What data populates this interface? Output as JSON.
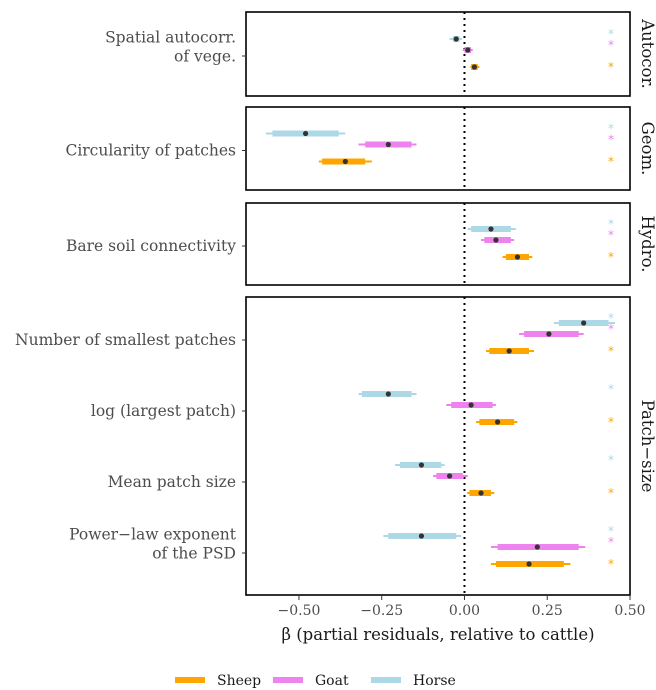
{
  "chart_data": {
    "type": "forest",
    "xlabel": "β (partial residuals, relative to cattle)",
    "xlim": [
      -0.66,
      0.5
    ],
    "xticks": [
      -0.5,
      -0.25,
      0.0,
      0.25,
      0.5
    ],
    "xtick_labels": [
      "−0.50",
      "−0.25",
      "0.00",
      "0.25",
      "0.50"
    ],
    "reference_line": 0,
    "legend_position": "bottom",
    "series": [
      {
        "name": "Sheep",
        "color": "#FFA500"
      },
      {
        "name": "Goat",
        "color": "#EE82EE"
      },
      {
        "name": "Horse",
        "color": "#ADD8E6"
      }
    ],
    "panels": [
      {
        "strip": "Autocor.",
        "variables": [
          {
            "label": [
              "Spatial autocorr.",
              "of vege."
            ],
            "estimates": [
              {
                "series": "Sheep",
                "value": 0.03,
                "ci_inner": [
                  0.02,
                  0.04
                ],
                "ci_outer": [
                  0.018,
                  0.045
                ],
                "significant": true
              },
              {
                "series": "Goat",
                "value": 0.01,
                "ci_inner": [
                  0.0,
                  0.02
                ],
                "ci_outer": [
                  -0.005,
                  0.025
                ],
                "significant": true
              },
              {
                "series": "Horse",
                "value": -0.025,
                "ci_inner": [
                  -0.035,
                  -0.015
                ],
                "ci_outer": [
                  -0.045,
                  -0.008
                ],
                "significant": true
              }
            ]
          }
        ]
      },
      {
        "strip": "Geom.",
        "variables": [
          {
            "label": [
              "Circularity of patches"
            ],
            "estimates": [
              {
                "series": "Sheep",
                "value": -0.36,
                "ci_inner": [
                  -0.43,
                  -0.3
                ],
                "ci_outer": [
                  -0.44,
                  -0.28
                ],
                "significant": true
              },
              {
                "series": "Goat",
                "value": -0.23,
                "ci_inner": [
                  -0.3,
                  -0.16
                ],
                "ci_outer": [
                  -0.32,
                  -0.145
                ],
                "significant": true
              },
              {
                "series": "Horse",
                "value": -0.48,
                "ci_inner": [
                  -0.58,
                  -0.38
                ],
                "ci_outer": [
                  -0.6,
                  -0.36
                ],
                "significant": true
              }
            ]
          }
        ]
      },
      {
        "strip": "Hydro.",
        "variables": [
          {
            "label": [
              "Bare soil connectivity"
            ],
            "estimates": [
              {
                "series": "Sheep",
                "value": 0.16,
                "ci_inner": [
                  0.125,
                  0.195
                ],
                "ci_outer": [
                  0.115,
                  0.205
                ],
                "significant": true
              },
              {
                "series": "Goat",
                "value": 0.095,
                "ci_inner": [
                  0.06,
                  0.14
                ],
                "ci_outer": [
                  0.05,
                  0.15
                ],
                "significant": true
              },
              {
                "series": "Horse",
                "value": 0.08,
                "ci_inner": [
                  0.02,
                  0.14
                ],
                "ci_outer": [
                  0.01,
                  0.155
                ],
                "significant": true
              }
            ]
          }
        ]
      },
      {
        "strip": "Patch−size",
        "variables": [
          {
            "label": [
              "Number of smallest patches"
            ],
            "estimates": [
              {
                "series": "Sheep",
                "value": 0.135,
                "ci_inner": [
                  0.075,
                  0.195
                ],
                "ci_outer": [
                  0.065,
                  0.21
                ],
                "significant": true
              },
              {
                "series": "Goat",
                "value": 0.255,
                "ci_inner": [
                  0.18,
                  0.345
                ],
                "ci_outer": [
                  0.165,
                  0.36
                ],
                "significant": true
              },
              {
                "series": "Horse",
                "value": 0.36,
                "ci_inner": [
                  0.285,
                  0.435
                ],
                "ci_outer": [
                  0.27,
                  0.455
                ],
                "significant": true
              }
            ]
          },
          {
            "label": [
              "log (largest patch)"
            ],
            "estimates": [
              {
                "series": "Sheep",
                "value": 0.1,
                "ci_inner": [
                  0.045,
                  0.15
                ],
                "ci_outer": [
                  0.035,
                  0.16
                ],
                "significant": true
              },
              {
                "series": "Goat",
                "value": 0.02,
                "ci_inner": [
                  -0.04,
                  0.085
                ],
                "ci_outer": [
                  -0.055,
                  0.095
                ],
                "significant": false
              },
              {
                "series": "Horse",
                "value": -0.23,
                "ci_inner": [
                  -0.31,
                  -0.16
                ],
                "ci_outer": [
                  -0.32,
                  -0.145
                ],
                "significant": true
              }
            ]
          },
          {
            "label": [
              "Mean patch size"
            ],
            "estimates": [
              {
                "series": "Sheep",
                "value": 0.05,
                "ci_inner": [
                  0.015,
                  0.08
                ],
                "ci_outer": [
                  0.008,
                  0.09
                ],
                "significant": true
              },
              {
                "series": "Goat",
                "value": -0.045,
                "ci_inner": [
                  -0.085,
                  -0.005
                ],
                "ci_outer": [
                  -0.095,
                  0.01
                ],
                "significant": false
              },
              {
                "series": "Horse",
                "value": -0.13,
                "ci_inner": [
                  -0.195,
                  -0.07
                ],
                "ci_outer": [
                  -0.21,
                  -0.06
                ],
                "significant": true
              }
            ]
          },
          {
            "label": [
              "Power−law exponent",
              "of the PSD"
            ],
            "estimates": [
              {
                "series": "Sheep",
                "value": 0.195,
                "ci_inner": [
                  0.095,
                  0.3
                ],
                "ci_outer": [
                  0.08,
                  0.32
                ],
                "significant": true
              },
              {
                "series": "Goat",
                "value": 0.22,
                "ci_inner": [
                  0.1,
                  0.345
                ],
                "ci_outer": [
                  0.08,
                  0.365
                ],
                "significant": true
              },
              {
                "series": "Horse",
                "value": -0.13,
                "ci_inner": [
                  -0.23,
                  -0.025
                ],
                "ci_outer": [
                  -0.245,
                  -0.01
                ],
                "significant": true
              }
            ]
          }
        ]
      }
    ],
    "significance_marker": "*"
  }
}
